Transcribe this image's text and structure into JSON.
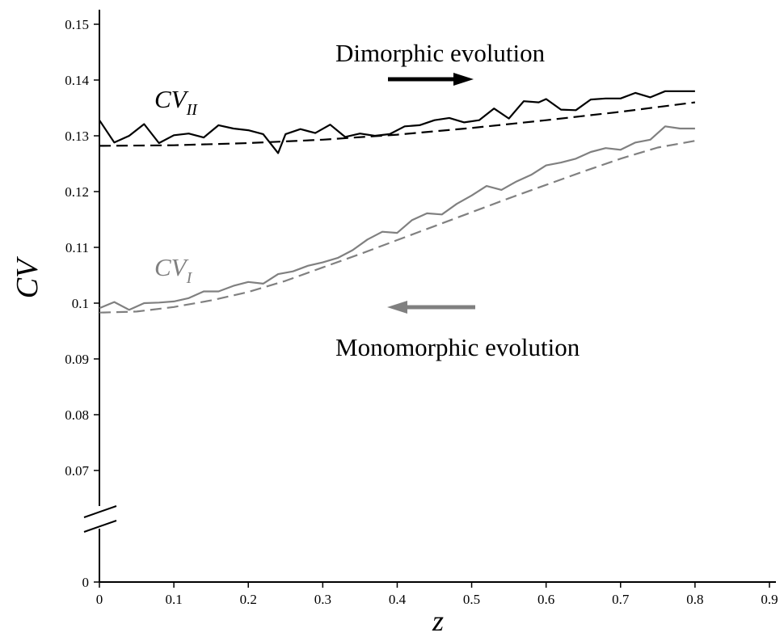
{
  "chart_data": {
    "type": "line",
    "xlabel": "z",
    "ylabel": "CV",
    "xlim": [
      0,
      0.9
    ],
    "x_ticks": [
      "0",
      "0.1",
      "0.2",
      "0.3",
      "0.4",
      "0.5",
      "0.6",
      "0.7",
      "0.8",
      "0.9"
    ],
    "y_ticks": [
      "0",
      "0.07",
      "0.08",
      "0.09",
      "0.1",
      "0.11",
      "0.12",
      "0.13",
      "0.14",
      "0.15"
    ],
    "y_break": true,
    "y_upper_range": [
      0.065,
      0.153
    ],
    "grid": false,
    "annotations": {
      "dimorphic": "Dimorphic evolution",
      "monomorphic": "Monomorphic evolution"
    },
    "series_labels": {
      "cv2_main": "CV",
      "cv2_sub": "II",
      "cv1_main": "CV",
      "cv1_sub": "I"
    },
    "colors": {
      "cv2": "#000000",
      "cv1": "#808080"
    },
    "series": [
      {
        "key": "cv2_sim",
        "style": "solid",
        "color": "#000000",
        "x": [
          0,
          0.02,
          0.04,
          0.06,
          0.08,
          0.1,
          0.12,
          0.14,
          0.16,
          0.18,
          0.2,
          0.22,
          0.24,
          0.25,
          0.27,
          0.29,
          0.31,
          0.33,
          0.35,
          0.37,
          0.39,
          0.41,
          0.43,
          0.45,
          0.47,
          0.49,
          0.51,
          0.53,
          0.55,
          0.57,
          0.59,
          0.6,
          0.62,
          0.64,
          0.66,
          0.68,
          0.7,
          0.72,
          0.74,
          0.76,
          0.78,
          0.8
        ],
        "y": [
          0.1328,
          0.1288,
          0.13,
          0.1321,
          0.1287,
          0.1301,
          0.1304,
          0.1297,
          0.1319,
          0.1313,
          0.131,
          0.1303,
          0.1269,
          0.1303,
          0.1312,
          0.1305,
          0.132,
          0.1298,
          0.1304,
          0.13,
          0.1303,
          0.1317,
          0.1319,
          0.1328,
          0.1332,
          0.1324,
          0.1328,
          0.1349,
          0.1331,
          0.1362,
          0.136,
          0.1366,
          0.1347,
          0.1346,
          0.1365,
          0.1367,
          0.1367,
          0.1377,
          0.1369,
          0.138,
          0.138,
          0.138
        ]
      },
      {
        "key": "cv2_fit",
        "style": "dashed",
        "color": "#000000",
        "x": [
          0,
          0.1,
          0.2,
          0.3,
          0.4,
          0.5,
          0.6,
          0.7,
          0.8
        ],
        "y": [
          0.1282,
          0.1283,
          0.1287,
          0.1293,
          0.1302,
          0.1314,
          0.1328,
          0.1343,
          0.136
        ]
      },
      {
        "key": "cv1_sim",
        "style": "solid",
        "color": "#808080",
        "x": [
          0,
          0.02,
          0.04,
          0.06,
          0.08,
          0.1,
          0.12,
          0.14,
          0.16,
          0.18,
          0.2,
          0.22,
          0.24,
          0.26,
          0.28,
          0.3,
          0.32,
          0.34,
          0.36,
          0.38,
          0.4,
          0.42,
          0.44,
          0.46,
          0.48,
          0.5,
          0.52,
          0.54,
          0.56,
          0.58,
          0.6,
          0.62,
          0.64,
          0.66,
          0.68,
          0.7,
          0.72,
          0.74,
          0.76,
          0.78,
          0.8
        ],
        "y": [
          0.0991,
          0.1002,
          0.0988,
          0.1,
          0.1001,
          0.1003,
          0.1009,
          0.1021,
          0.1021,
          0.1031,
          0.1038,
          0.1035,
          0.1052,
          0.1057,
          0.1067,
          0.1073,
          0.1081,
          0.1095,
          0.1114,
          0.1128,
          0.1126,
          0.1149,
          0.1161,
          0.1159,
          0.1178,
          0.1193,
          0.121,
          0.1203,
          0.1218,
          0.123,
          0.1247,
          0.1252,
          0.1259,
          0.1271,
          0.1278,
          0.1275,
          0.1288,
          0.1293,
          0.1317,
          0.1313,
          0.1313
        ]
      },
      {
        "key": "cv1_fit",
        "style": "dashed",
        "color": "#808080",
        "x": [
          0,
          0.05,
          0.1,
          0.15,
          0.2,
          0.25,
          0.3,
          0.35,
          0.4,
          0.45,
          0.5,
          0.55,
          0.6,
          0.65,
          0.7,
          0.75,
          0.8
        ],
        "y": [
          0.0983,
          0.0985,
          0.0993,
          0.1005,
          0.102,
          0.104,
          0.1064,
          0.1088,
          0.1113,
          0.1138,
          0.1163,
          0.1188,
          0.1212,
          0.1236,
          0.1259,
          0.1279,
          0.1291
        ]
      }
    ]
  }
}
